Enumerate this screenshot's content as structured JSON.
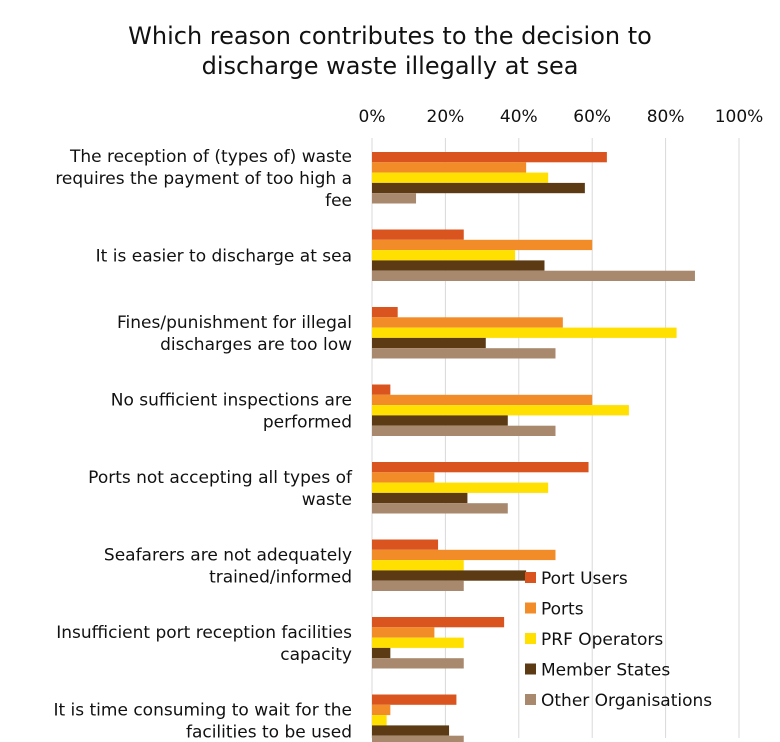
{
  "chart_data": {
    "type": "bar",
    "orientation": "horizontal",
    "title": "Which reason contributes to the decision to discharge waste illegally at sea",
    "title_lines": [
      "Which reason contributes to the decision to",
      "discharge waste illegally at sea"
    ],
    "xlim": [
      0,
      100
    ],
    "x_ticks": [
      "0%",
      "20%",
      "40%",
      "60%",
      "80%",
      "100%"
    ],
    "x_axis_position": "top",
    "grid": true,
    "legend_position": "bottom-right",
    "categories": [
      [
        "The reception of (types of) waste",
        "requires the payment of too high a",
        "fee"
      ],
      [
        "It is easier to discharge at sea"
      ],
      [
        "Fines/punishment for illegal",
        "discharges are too low"
      ],
      [
        "No sufficient inspections are",
        "performed"
      ],
      [
        "Ports not accepting all types of",
        "waste"
      ],
      [
        "Seafarers are not adequately",
        "trained/informed"
      ],
      [
        "Insufficient port reception facilities",
        "capacity"
      ],
      [
        "It is time consuming to wait for the",
        "facilities to be used"
      ]
    ],
    "series": [
      {
        "name": "Port Users",
        "color": "#D9541E",
        "values": [
          64,
          25,
          7,
          5,
          59,
          18,
          36,
          23
        ]
      },
      {
        "name": "Ports",
        "color": "#F28C28",
        "values": [
          42,
          60,
          52,
          60,
          17,
          50,
          17,
          5
        ]
      },
      {
        "name": "PRF Operators",
        "color": "#FFE000",
        "values": [
          48,
          39,
          83,
          70,
          48,
          25,
          25,
          4
        ]
      },
      {
        "name": "Member States",
        "color": "#5C3A14",
        "values": [
          58,
          47,
          31,
          37,
          26,
          42,
          5,
          21
        ]
      },
      {
        "name": "Other Organisations",
        "color": "#A8896E",
        "values": [
          12,
          88,
          50,
          50,
          37,
          25,
          25,
          25
        ]
      }
    ]
  }
}
